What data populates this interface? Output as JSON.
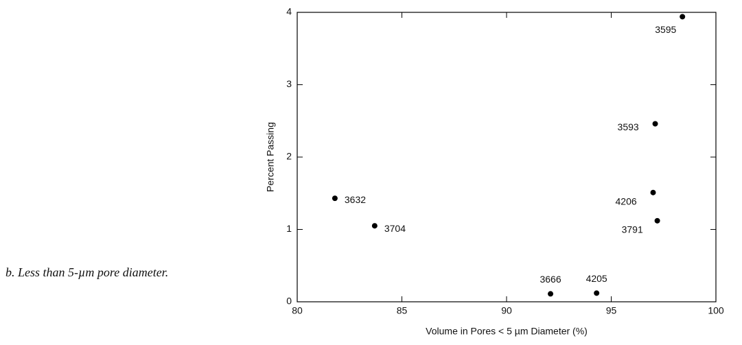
{
  "caption": "b. Less than 5-µm pore diameter.",
  "chart_data": {
    "type": "scatter",
    "xlabel": "Volume in Pores < 5 µm Diameter (%)",
    "ylabel": "Percent Passing",
    "x": [
      98.4,
      97.1,
      97.0,
      97.2,
      81.8,
      83.7,
      92.1,
      94.3
    ],
    "values": [
      3.94,
      2.46,
      1.51,
      1.12,
      1.43,
      1.05,
      0.11,
      0.12
    ],
    "labels": [
      "3595",
      "3593",
      "4206",
      "3791",
      "3632",
      "3704",
      "3666",
      "4205"
    ],
    "color": "#000000",
    "xlim": [
      80,
      100
    ],
    "xticks": [
      80,
      85,
      90,
      95,
      100
    ],
    "ylim": [
      0,
      4
    ],
    "yticks": [
      0,
      1,
      2,
      3,
      4
    ]
  }
}
